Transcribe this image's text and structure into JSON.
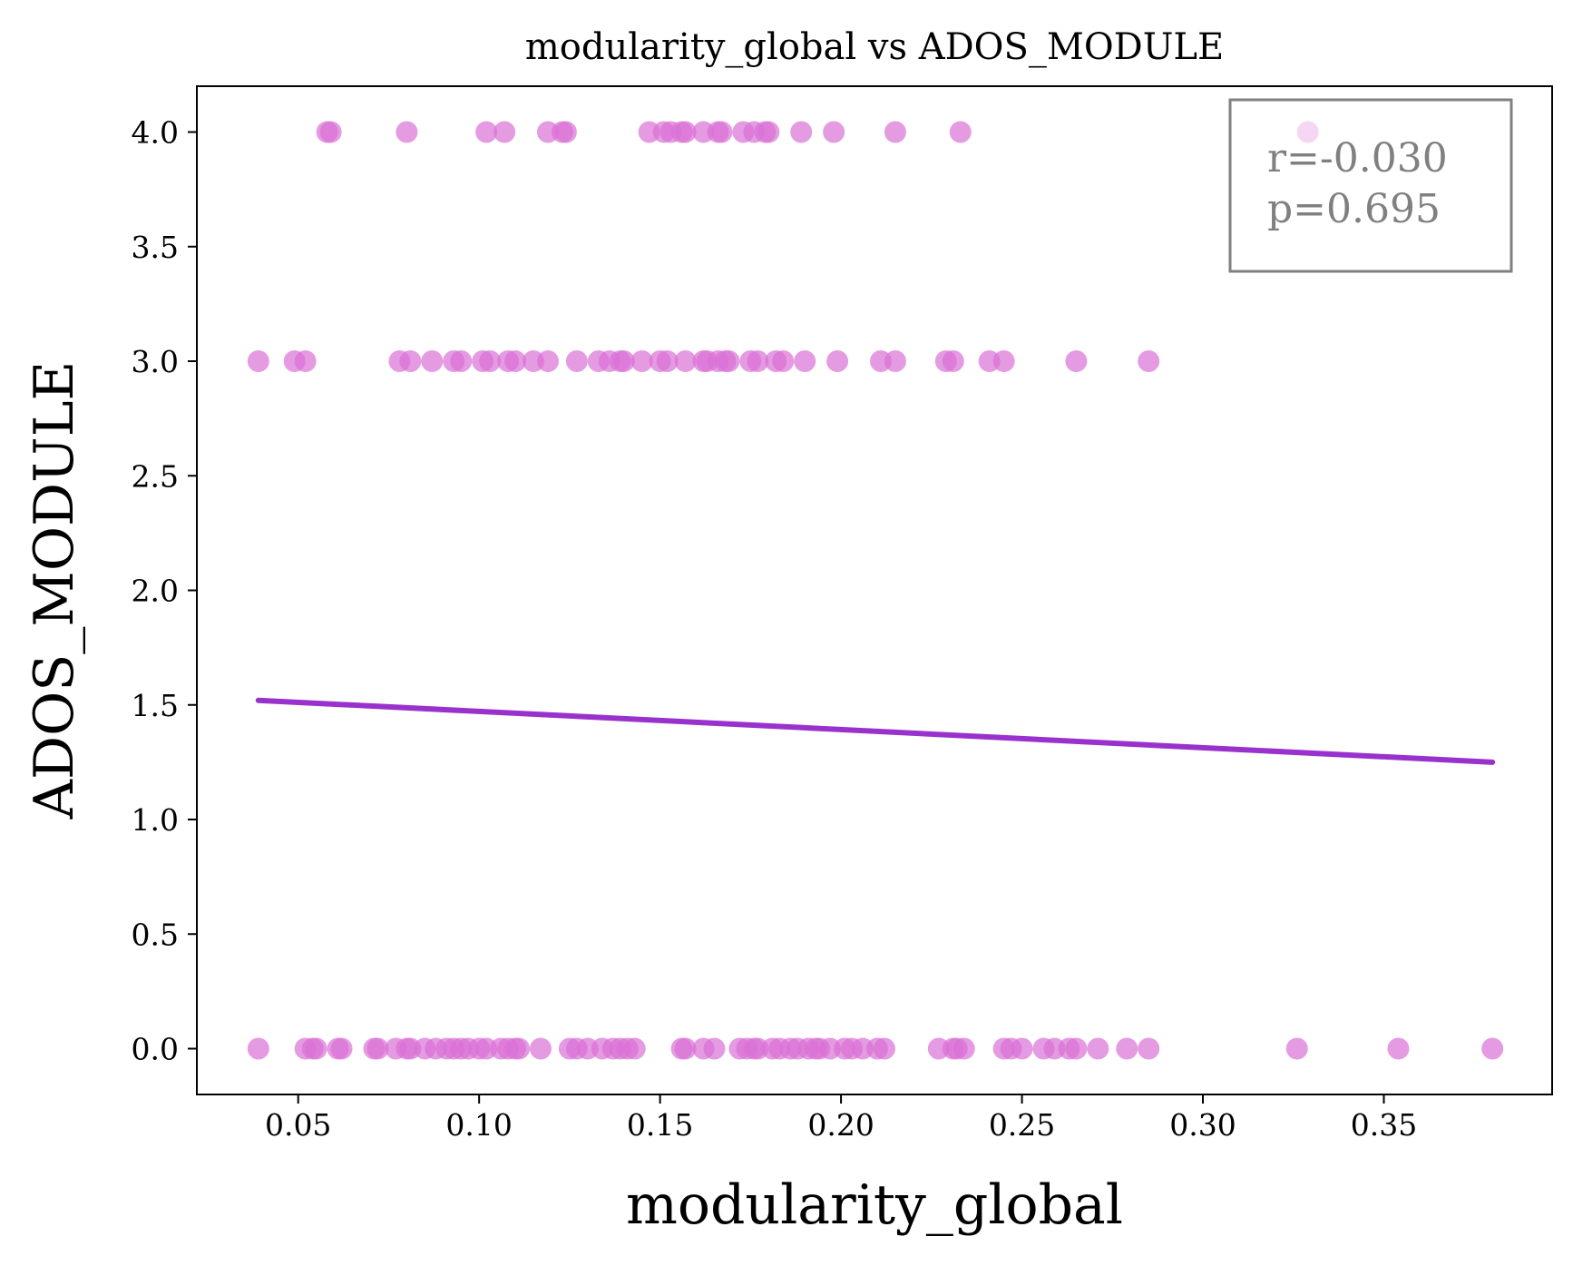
{
  "chart_data": {
    "type": "scatter",
    "title": "modularity_global vs ADOS_MODULE",
    "xlabel": "modularity_global",
    "ylabel": "ADOS_MODULE",
    "xlim": [
      0.022,
      0.3965
    ],
    "ylim": [
      -0.2,
      4.2
    ],
    "xticks": [
      0.05,
      0.1,
      0.15,
      0.2,
      0.25,
      0.3,
      0.35
    ],
    "xtick_labels": [
      "0.05",
      "0.10",
      "0.15",
      "0.20",
      "0.25",
      "0.30",
      "0.35"
    ],
    "yticks": [
      0.0,
      0.5,
      1.0,
      1.5,
      2.0,
      2.5,
      3.0,
      3.5,
      4.0
    ],
    "ytick_labels": [
      "0.0",
      "0.5",
      "1.0",
      "1.5",
      "2.0",
      "2.5",
      "3.0",
      "3.5",
      "4.0"
    ],
    "grid": false,
    "annotation": {
      "lines": [
        "r=-0.030",
        "p=0.695"
      ],
      "placement": "top-right",
      "color": "#808080"
    },
    "point_color": "#da70d6",
    "line_color": "#9932cc",
    "points": [
      {
        "x": 0.058,
        "y": 4
      },
      {
        "x": 0.059,
        "y": 4
      },
      {
        "x": 0.08,
        "y": 4
      },
      {
        "x": 0.102,
        "y": 4
      },
      {
        "x": 0.107,
        "y": 4
      },
      {
        "x": 0.119,
        "y": 4
      },
      {
        "x": 0.123,
        "y": 4
      },
      {
        "x": 0.124,
        "y": 4
      },
      {
        "x": 0.147,
        "y": 4
      },
      {
        "x": 0.151,
        "y": 4
      },
      {
        "x": 0.153,
        "y": 4
      },
      {
        "x": 0.156,
        "y": 4
      },
      {
        "x": 0.157,
        "y": 4
      },
      {
        "x": 0.162,
        "y": 4
      },
      {
        "x": 0.166,
        "y": 4
      },
      {
        "x": 0.167,
        "y": 4
      },
      {
        "x": 0.173,
        "y": 4
      },
      {
        "x": 0.176,
        "y": 4
      },
      {
        "x": 0.179,
        "y": 4
      },
      {
        "x": 0.18,
        "y": 4
      },
      {
        "x": 0.189,
        "y": 4
      },
      {
        "x": 0.198,
        "y": 4
      },
      {
        "x": 0.215,
        "y": 4
      },
      {
        "x": 0.233,
        "y": 4
      },
      {
        "x": 0.329,
        "y": 4
      },
      {
        "x": 0.039,
        "y": 3
      },
      {
        "x": 0.049,
        "y": 3
      },
      {
        "x": 0.052,
        "y": 3
      },
      {
        "x": 0.078,
        "y": 3
      },
      {
        "x": 0.081,
        "y": 3
      },
      {
        "x": 0.087,
        "y": 3
      },
      {
        "x": 0.093,
        "y": 3
      },
      {
        "x": 0.095,
        "y": 3
      },
      {
        "x": 0.101,
        "y": 3
      },
      {
        "x": 0.103,
        "y": 3
      },
      {
        "x": 0.108,
        "y": 3
      },
      {
        "x": 0.11,
        "y": 3
      },
      {
        "x": 0.115,
        "y": 3
      },
      {
        "x": 0.119,
        "y": 3
      },
      {
        "x": 0.127,
        "y": 3
      },
      {
        "x": 0.133,
        "y": 3
      },
      {
        "x": 0.136,
        "y": 3
      },
      {
        "x": 0.139,
        "y": 3
      },
      {
        "x": 0.14,
        "y": 3
      },
      {
        "x": 0.145,
        "y": 3
      },
      {
        "x": 0.15,
        "y": 3
      },
      {
        "x": 0.152,
        "y": 3
      },
      {
        "x": 0.157,
        "y": 3
      },
      {
        "x": 0.162,
        "y": 3
      },
      {
        "x": 0.163,
        "y": 3
      },
      {
        "x": 0.166,
        "y": 3
      },
      {
        "x": 0.168,
        "y": 3
      },
      {
        "x": 0.169,
        "y": 3
      },
      {
        "x": 0.175,
        "y": 3
      },
      {
        "x": 0.177,
        "y": 3
      },
      {
        "x": 0.182,
        "y": 3
      },
      {
        "x": 0.184,
        "y": 3
      },
      {
        "x": 0.19,
        "y": 3
      },
      {
        "x": 0.199,
        "y": 3
      },
      {
        "x": 0.211,
        "y": 3
      },
      {
        "x": 0.215,
        "y": 3
      },
      {
        "x": 0.229,
        "y": 3
      },
      {
        "x": 0.231,
        "y": 3
      },
      {
        "x": 0.241,
        "y": 3
      },
      {
        "x": 0.245,
        "y": 3
      },
      {
        "x": 0.265,
        "y": 3
      },
      {
        "x": 0.285,
        "y": 3
      },
      {
        "x": 0.039,
        "y": 0
      },
      {
        "x": 0.052,
        "y": 0
      },
      {
        "x": 0.054,
        "y": 0
      },
      {
        "x": 0.055,
        "y": 0
      },
      {
        "x": 0.061,
        "y": 0
      },
      {
        "x": 0.062,
        "y": 0
      },
      {
        "x": 0.071,
        "y": 0
      },
      {
        "x": 0.072,
        "y": 0
      },
      {
        "x": 0.077,
        "y": 0
      },
      {
        "x": 0.08,
        "y": 0
      },
      {
        "x": 0.081,
        "y": 0
      },
      {
        "x": 0.085,
        "y": 0
      },
      {
        "x": 0.088,
        "y": 0
      },
      {
        "x": 0.091,
        "y": 0
      },
      {
        "x": 0.093,
        "y": 0
      },
      {
        "x": 0.095,
        "y": 0
      },
      {
        "x": 0.097,
        "y": 0
      },
      {
        "x": 0.1,
        "y": 0
      },
      {
        "x": 0.102,
        "y": 0
      },
      {
        "x": 0.106,
        "y": 0
      },
      {
        "x": 0.108,
        "y": 0
      },
      {
        "x": 0.11,
        "y": 0
      },
      {
        "x": 0.111,
        "y": 0
      },
      {
        "x": 0.117,
        "y": 0
      },
      {
        "x": 0.125,
        "y": 0
      },
      {
        "x": 0.127,
        "y": 0
      },
      {
        "x": 0.13,
        "y": 0
      },
      {
        "x": 0.134,
        "y": 0
      },
      {
        "x": 0.137,
        "y": 0
      },
      {
        "x": 0.139,
        "y": 0
      },
      {
        "x": 0.141,
        "y": 0
      },
      {
        "x": 0.143,
        "y": 0
      },
      {
        "x": 0.156,
        "y": 0
      },
      {
        "x": 0.157,
        "y": 0
      },
      {
        "x": 0.162,
        "y": 0
      },
      {
        "x": 0.165,
        "y": 0
      },
      {
        "x": 0.172,
        "y": 0
      },
      {
        "x": 0.174,
        "y": 0
      },
      {
        "x": 0.176,
        "y": 0
      },
      {
        "x": 0.177,
        "y": 0
      },
      {
        "x": 0.181,
        "y": 0
      },
      {
        "x": 0.183,
        "y": 0
      },
      {
        "x": 0.186,
        "y": 0
      },
      {
        "x": 0.188,
        "y": 0
      },
      {
        "x": 0.191,
        "y": 0
      },
      {
        "x": 0.193,
        "y": 0
      },
      {
        "x": 0.194,
        "y": 0
      },
      {
        "x": 0.197,
        "y": 0
      },
      {
        "x": 0.201,
        "y": 0
      },
      {
        "x": 0.203,
        "y": 0
      },
      {
        "x": 0.206,
        "y": 0
      },
      {
        "x": 0.21,
        "y": 0
      },
      {
        "x": 0.212,
        "y": 0
      },
      {
        "x": 0.227,
        "y": 0
      },
      {
        "x": 0.231,
        "y": 0
      },
      {
        "x": 0.232,
        "y": 0
      },
      {
        "x": 0.234,
        "y": 0
      },
      {
        "x": 0.245,
        "y": 0
      },
      {
        "x": 0.247,
        "y": 0
      },
      {
        "x": 0.25,
        "y": 0
      },
      {
        "x": 0.256,
        "y": 0
      },
      {
        "x": 0.259,
        "y": 0
      },
      {
        "x": 0.263,
        "y": 0
      },
      {
        "x": 0.265,
        "y": 0
      },
      {
        "x": 0.271,
        "y": 0
      },
      {
        "x": 0.279,
        "y": 0
      },
      {
        "x": 0.285,
        "y": 0
      },
      {
        "x": 0.326,
        "y": 0
      },
      {
        "x": 0.354,
        "y": 0
      },
      {
        "x": 0.38,
        "y": 0
      }
    ],
    "regression_line": {
      "x": [
        0.039,
        0.38
      ],
      "y": [
        1.52,
        1.25
      ]
    }
  }
}
